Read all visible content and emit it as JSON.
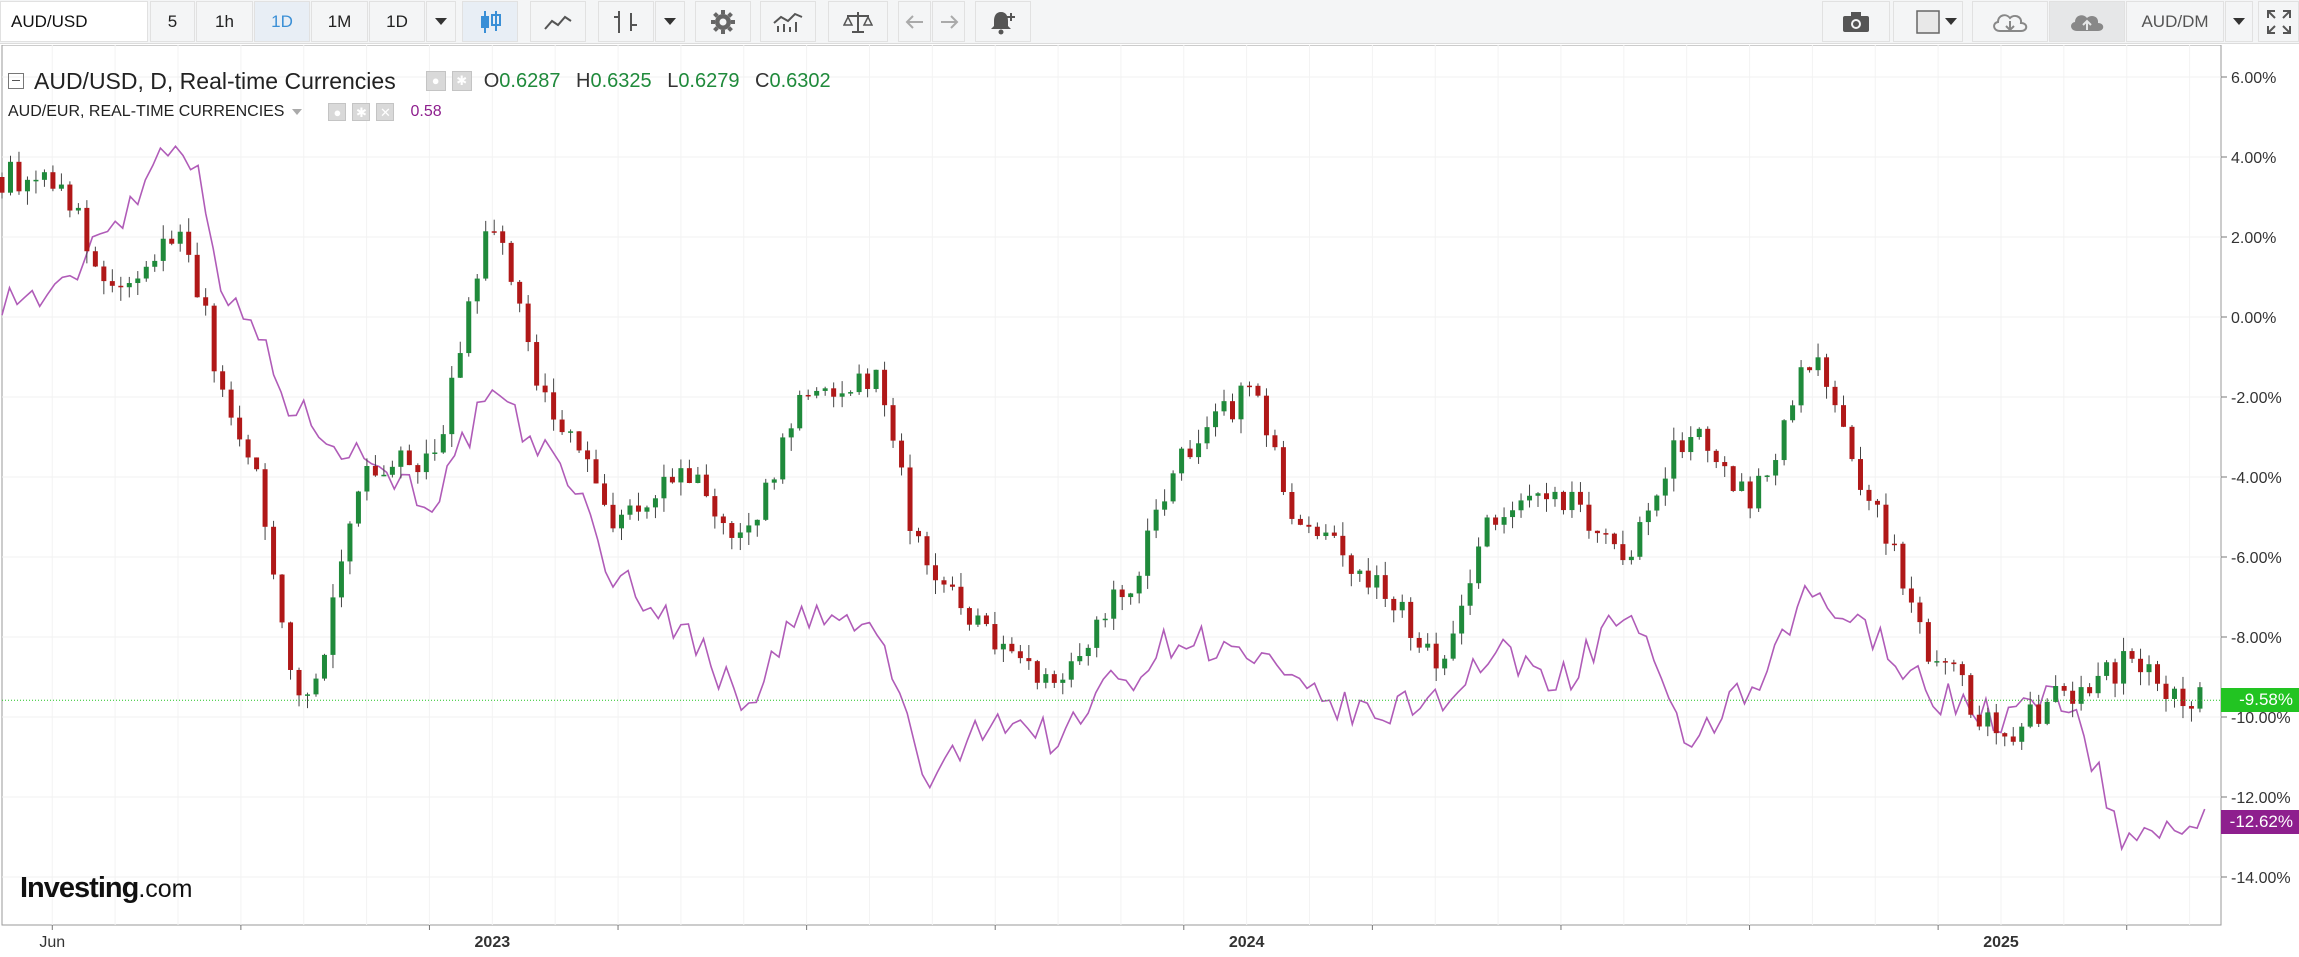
{
  "toolbar": {
    "symbol": "AUD/USD",
    "intervals": [
      "5",
      "1h",
      "1D",
      "1M",
      "1D"
    ],
    "active_interval": "1D",
    "compare_symbol": "AUD/DM"
  },
  "legend": {
    "main_title": "AUD/USD, D, Real-time Currencies",
    "open_key": "O",
    "open": "0.6287",
    "high_key": "H",
    "high": "0.6325",
    "low_key": "L",
    "low": "0.6279",
    "close_key": "C",
    "close": "0.6302",
    "compare_title": "AUD/EUR, REAL-TIME CURRENCIES",
    "compare_value": "0.58"
  },
  "logo": {
    "brand": "Investing",
    "suffix": ".com"
  },
  "colors": {
    "up": "#1f8a3b",
    "down": "#b01818",
    "compare_line": "#b05cb8",
    "current_tag": "#22c422",
    "compare_tag": "#8e1f8e"
  },
  "chart_data": {
    "type": "line",
    "x_labels": [
      "Jun",
      "2023",
      "2024",
      "2025"
    ],
    "y_ticks": [
      "6.00%",
      "4.00%",
      "2.00%",
      "0.00%",
      "-2.00%",
      "-4.00%",
      "-6.00%",
      "-8.00%",
      "-10.00%",
      "-12.00%",
      "-14.00%"
    ],
    "ylim": [
      -15.2,
      6.8
    ],
    "y_unit": "%",
    "current_values": {
      "main": "-9.58%",
      "compare": "-12.62%"
    },
    "series": [
      {
        "name": "AUD/USD",
        "kind": "candlestick",
        "x": [
          "2022-06",
          "2022-07",
          "2022-08",
          "2022-09",
          "2022-10",
          "2022-11",
          "2022-12",
          "2023-01",
          "2023-02",
          "2023-03",
          "2023-04",
          "2023-05",
          "2023-06",
          "2023-07",
          "2023-08",
          "2023-09",
          "2023-10",
          "2023-11",
          "2023-12",
          "2024-01",
          "2024-02",
          "2024-03",
          "2024-04",
          "2024-05",
          "2024-06",
          "2024-07",
          "2024-08",
          "2024-09",
          "2024-10",
          "2024-11",
          "2024-12",
          "2025-01",
          "2025-02",
          "2025-03",
          "2025-04"
        ],
        "values": [
          3.5,
          0.5,
          2.0,
          -3.0,
          -9.5,
          -4.0,
          -3.5,
          2.0,
          -2.5,
          -5.0,
          -4.0,
          -5.5,
          -2.0,
          -1.5,
          -6.5,
          -8.0,
          -9.0,
          -7.0,
          -3.5,
          -2.0,
          -5.5,
          -6.5,
          -8.5,
          -5.0,
          -4.5,
          -6.0,
          -3.0,
          -4.5,
          -1.0,
          -5.0,
          -8.5,
          -10.5,
          -9.5,
          -8.7,
          -9.6
        ]
      },
      {
        "name": "AUD/EUR",
        "kind": "line",
        "x": [
          "2022-06",
          "2022-07",
          "2022-08",
          "2022-09",
          "2022-10",
          "2022-11",
          "2022-12",
          "2023-01",
          "2023-02",
          "2023-03",
          "2023-04",
          "2023-05",
          "2023-06",
          "2023-07",
          "2023-08",
          "2023-09",
          "2023-10",
          "2023-11",
          "2023-12",
          "2024-01",
          "2024-02",
          "2024-03",
          "2024-04",
          "2024-05",
          "2024-06",
          "2024-07",
          "2024-08",
          "2024-09",
          "2024-10",
          "2024-11",
          "2024-12",
          "2025-01",
          "2025-02",
          "2025-03",
          "2025-04"
        ],
        "values": [
          0.5,
          2.5,
          4.5,
          0.0,
          -2.5,
          -3.5,
          -4.5,
          -2.2,
          -3.5,
          -6.5,
          -7.8,
          -9.5,
          -7.5,
          -7.8,
          -11.5,
          -10.0,
          -10.5,
          -9.0,
          -8.0,
          -8.5,
          -9.5,
          -10.0,
          -9.5,
          -8.5,
          -9.0,
          -7.5,
          -10.5,
          -9.5,
          -7.0,
          -8.0,
          -9.5,
          -10.0,
          -9.5,
          -13.0,
          -12.6
        ]
      }
    ]
  }
}
